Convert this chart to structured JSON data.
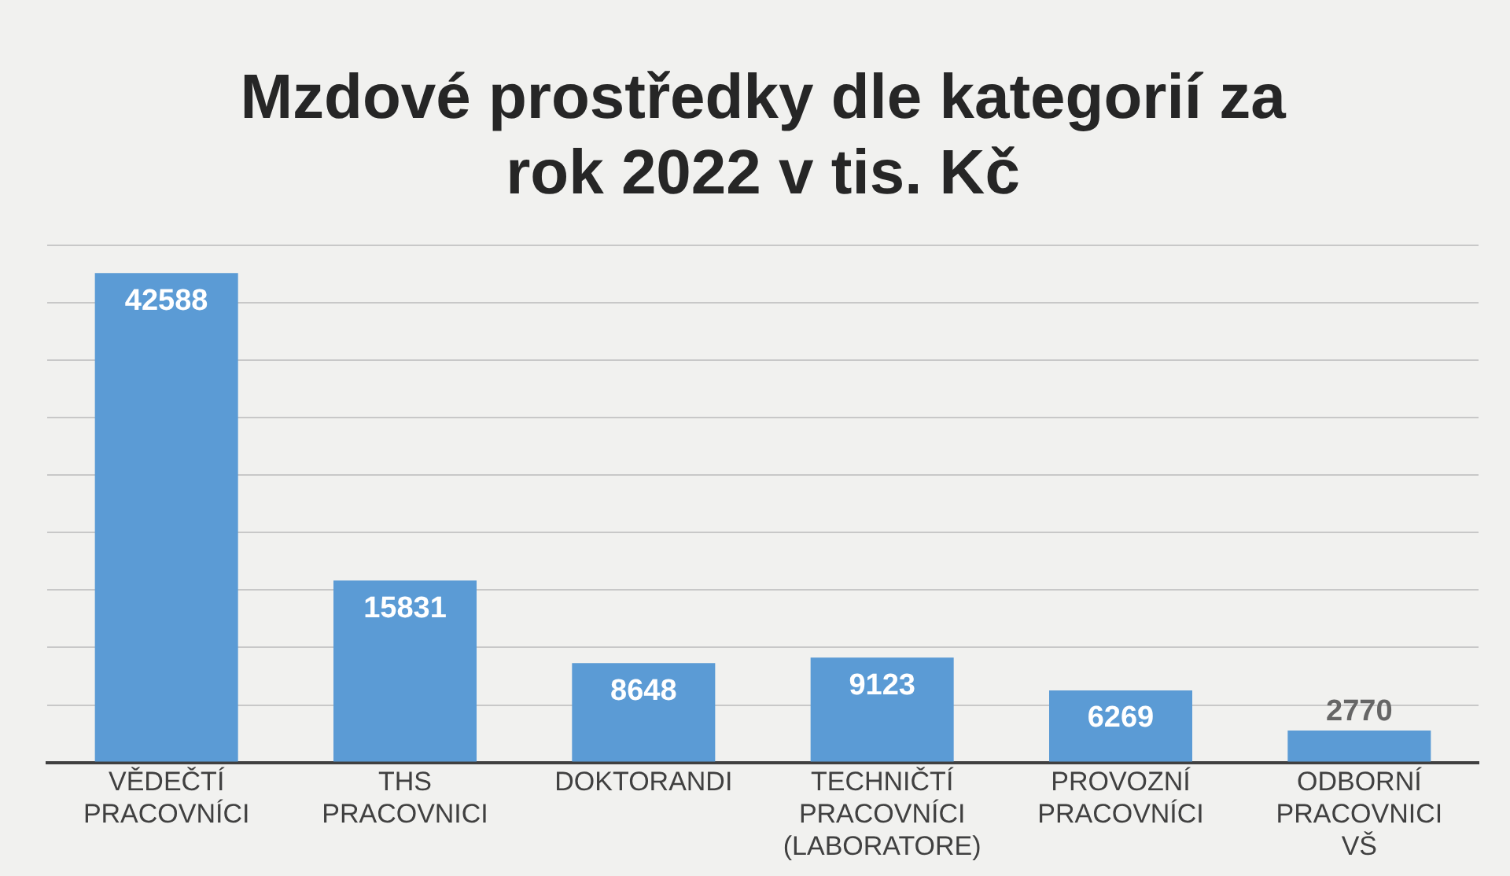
{
  "chart_data": {
    "type": "bar",
    "title": "Mzdové prostředky dle kategorií za rok 2022 v tis. Kč",
    "categories": [
      "VĚDEČTÍ PRACOVNÍCI",
      "THS PRACOVNICI",
      "DOKTORANDI",
      "TECHNIČTÍ PRACOVNÍCI (LABORATORE)",
      "PROVOZNÍ PRACOVNÍCI",
      "ODBORNÍ PRACOVNICI VŠ"
    ],
    "values": [
      42588,
      15831,
      8648,
      9123,
      6269,
      2770
    ],
    "color": "#5b9bd5",
    "ylim": [
      0,
      45000
    ],
    "yticks": [
      {
        "value": 0,
        "label": null
      },
      {
        "value": 5000,
        "label": null
      },
      {
        "value": 10000,
        "label": null
      },
      {
        "value": 15000,
        "label": null
      },
      {
        "value": 20000,
        "label": null
      },
      {
        "value": 25000,
        "label": null
      },
      {
        "value": 30000,
        "label": null
      },
      {
        "value": 35000,
        "label": null
      },
      {
        "value": 40000,
        "label": null
      },
      {
        "value": 45000,
        "label": null
      }
    ],
    "grid": "y",
    "tick_labels": "x",
    "data_labels": true
  }
}
